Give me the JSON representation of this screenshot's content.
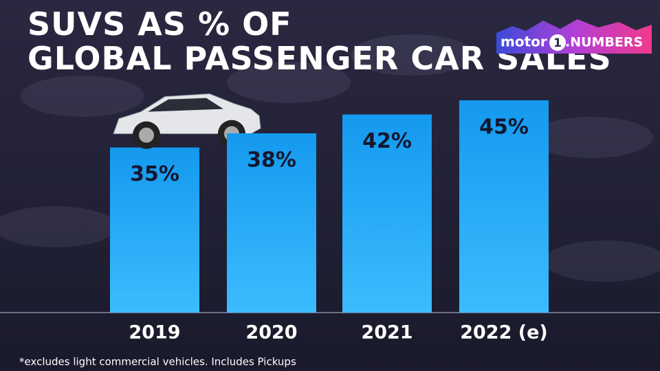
{
  "title": "SUVS AS % OF GLOBAL PASSENGER CAR SALES",
  "logo": {
    "prefix": "motor",
    "number": "1",
    "suffix": ".NUMBERS"
  },
  "chart_data": {
    "type": "bar",
    "categories": [
      "2019",
      "2020",
      "2021",
      "2022 (e)"
    ],
    "values": [
      35,
      38,
      42,
      45
    ],
    "value_labels": [
      "35%",
      "38%",
      "42%",
      "45%"
    ],
    "color": "#1aa6f4"
  },
  "footnote": "*excludes light commercial vehicles. Includes Pickups"
}
